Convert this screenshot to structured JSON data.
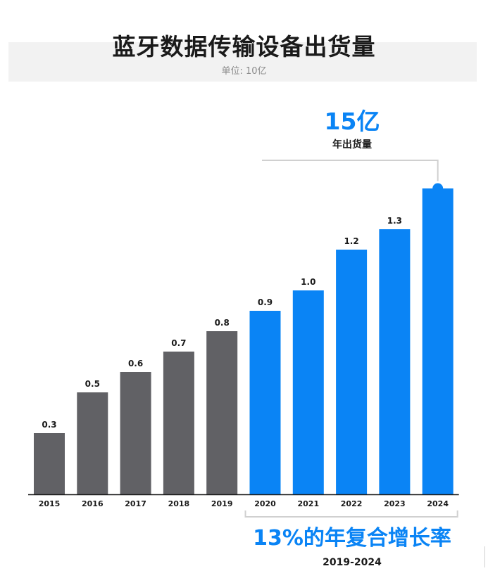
{
  "header": {
    "title": "蓝牙数据传输设备出货量",
    "unit": "单位: 10亿"
  },
  "callout": {
    "value": "15亿",
    "label": "年出货量"
  },
  "cagr": {
    "value": "13%的年复合增长率",
    "range": "2019-2024"
  },
  "colors": {
    "historical": "#616165",
    "forecast": "#0a84f5",
    "connector": "#d0d0d0"
  },
  "chart_data": {
    "type": "bar",
    "title": "蓝牙数据传输设备出货量",
    "ylabel": "单位: 10亿",
    "categories": [
      "2015",
      "2016",
      "2017",
      "2018",
      "2019",
      "2020",
      "2021",
      "2022",
      "2023",
      "2024"
    ],
    "values": [
      0.3,
      0.5,
      0.6,
      0.7,
      0.8,
      0.9,
      1.0,
      1.2,
      1.3,
      1.5
    ],
    "value_labels": [
      "0.3",
      "0.5",
      "0.6",
      "0.7",
      "0.8",
      "0.9",
      "1.0",
      "1.2",
      "1.3",
      ""
    ],
    "highlight_from_index": 5,
    "ylim": [
      0,
      1.5
    ],
    "grid": false,
    "legend": "none"
  }
}
